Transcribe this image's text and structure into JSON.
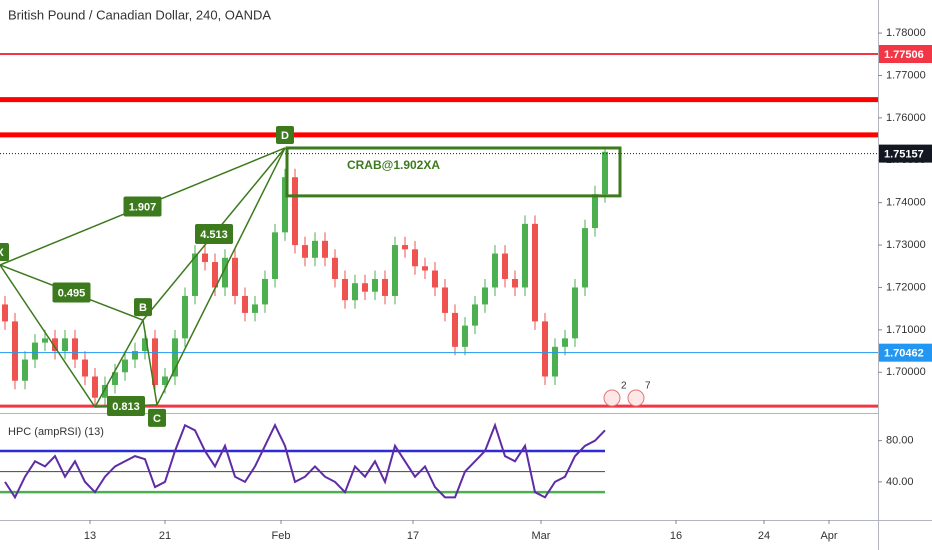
{
  "chart_data": {
    "type": "candlestick",
    "title": "British Pound / Canadian Dollar, 240, OANDA",
    "ylim": [
      1.6911,
      1.7878
    ],
    "yticks": [
      {
        "value": 1.7,
        "label": "1.70000"
      },
      {
        "value": 1.71,
        "label": "1.71000"
      },
      {
        "value": 1.72,
        "label": "1.72000"
      },
      {
        "value": 1.73,
        "label": "1.73000"
      },
      {
        "value": 1.74,
        "label": "1.74000"
      },
      {
        "value": 1.75,
        "label": "1.75000"
      },
      {
        "value": 1.76,
        "label": "1.76000"
      },
      {
        "value": 1.77,
        "label": "1.77000"
      },
      {
        "value": 1.78,
        "label": "1.78000"
      }
    ],
    "xlim": [
      -0.5,
      87.3
    ],
    "xticks": [
      {
        "value": 8.5,
        "label": "13"
      },
      {
        "value": 16,
        "label": "21"
      },
      {
        "value": 27.6,
        "label": "Feb"
      },
      {
        "value": 40.8,
        "label": "17"
      },
      {
        "value": 53.6,
        "label": "Mar"
      },
      {
        "value": 67.1,
        "label": "16"
      },
      {
        "value": 75.9,
        "label": "24"
      },
      {
        "value": 82.4,
        "label": "Apr"
      }
    ],
    "up_color": "#4caf50",
    "down_color": "#ef5350",
    "candles": [
      [
        1.716,
        1.718,
        1.71,
        1.712
      ],
      [
        1.712,
        1.714,
        1.696,
        1.698
      ],
      [
        1.698,
        1.705,
        1.696,
        1.703
      ],
      [
        1.703,
        1.709,
        1.701,
        1.707
      ],
      [
        1.707,
        1.71,
        1.705,
        1.708
      ],
      [
        1.708,
        1.71,
        1.703,
        1.705
      ],
      [
        1.705,
        1.71,
        1.703,
        1.708
      ],
      [
        1.708,
        1.71,
        1.701,
        1.703
      ],
      [
        1.703,
        1.705,
        1.697,
        1.699
      ],
      [
        1.699,
        1.701,
        1.692,
        1.694
      ],
      [
        1.694,
        1.699,
        1.692,
        1.697
      ],
      [
        1.697,
        1.702,
        1.695,
        1.7
      ],
      [
        1.7,
        1.705,
        1.698,
        1.703
      ],
      [
        1.703,
        1.707,
        1.701,
        1.705
      ],
      [
        1.705,
        1.71,
        1.703,
        1.708
      ],
      [
        1.708,
        1.71,
        1.695,
        1.697
      ],
      [
        1.697,
        1.701,
        1.695,
        1.699
      ],
      [
        1.699,
        1.71,
        1.697,
        1.708
      ],
      [
        1.708,
        1.72,
        1.706,
        1.718
      ],
      [
        1.718,
        1.73,
        1.716,
        1.728
      ],
      [
        1.728,
        1.73,
        1.724,
        1.726
      ],
      [
        1.726,
        1.728,
        1.718,
        1.72
      ],
      [
        1.72,
        1.729,
        1.718,
        1.727
      ],
      [
        1.727,
        1.729,
        1.716,
        1.718
      ],
      [
        1.718,
        1.72,
        1.712,
        1.714
      ],
      [
        1.714,
        1.718,
        1.712,
        1.716
      ],
      [
        1.716,
        1.724,
        1.714,
        1.722
      ],
      [
        1.722,
        1.735,
        1.72,
        1.733
      ],
      [
        1.733,
        1.748,
        1.731,
        1.746
      ],
      [
        1.746,
        1.748,
        1.728,
        1.73
      ],
      [
        1.73,
        1.732,
        1.725,
        1.727
      ],
      [
        1.727,
        1.733,
        1.725,
        1.731
      ],
      [
        1.731,
        1.733,
        1.725,
        1.727
      ],
      [
        1.727,
        1.729,
        1.72,
        1.722
      ],
      [
        1.722,
        1.724,
        1.715,
        1.717
      ],
      [
        1.717,
        1.723,
        1.715,
        1.721
      ],
      [
        1.721,
        1.723,
        1.717,
        1.719
      ],
      [
        1.719,
        1.724,
        1.717,
        1.722
      ],
      [
        1.722,
        1.724,
        1.716,
        1.718
      ],
      [
        1.718,
        1.732,
        1.716,
        1.73
      ],
      [
        1.73,
        1.732,
        1.727,
        1.729
      ],
      [
        1.729,
        1.731,
        1.723,
        1.725
      ],
      [
        1.725,
        1.727,
        1.722,
        1.724
      ],
      [
        1.724,
        1.726,
        1.718,
        1.72
      ],
      [
        1.72,
        1.722,
        1.712,
        1.714
      ],
      [
        1.714,
        1.716,
        1.704,
        1.706
      ],
      [
        1.706,
        1.713,
        1.704,
        1.711
      ],
      [
        1.711,
        1.718,
        1.709,
        1.716
      ],
      [
        1.716,
        1.722,
        1.714,
        1.72
      ],
      [
        1.72,
        1.73,
        1.718,
        1.728
      ],
      [
        1.728,
        1.73,
        1.72,
        1.722
      ],
      [
        1.722,
        1.724,
        1.718,
        1.72
      ],
      [
        1.72,
        1.737,
        1.718,
        1.735
      ],
      [
        1.735,
        1.737,
        1.71,
        1.712
      ],
      [
        1.712,
        1.714,
        1.697,
        1.699
      ],
      [
        1.699,
        1.708,
        1.697,
        1.706
      ],
      [
        1.706,
        1.71,
        1.704,
        1.708
      ],
      [
        1.708,
        1.722,
        1.706,
        1.72
      ],
      [
        1.72,
        1.736,
        1.718,
        1.734
      ],
      [
        1.734,
        1.744,
        1.732,
        1.742
      ],
      [
        1.742,
        1.753,
        1.74,
        1.752
      ]
    ],
    "levels": [
      {
        "value": 1.77506,
        "label": "1.77506",
        "color": "#f23645",
        "style": "solid",
        "width": 2
      },
      {
        "value": 1.7643,
        "color": "#ff0000",
        "style": "solid",
        "width": 5
      },
      {
        "value": 1.756,
        "color": "#ff0000",
        "style": "solid",
        "width": 5
      },
      {
        "value": 1.75157,
        "label": "1.75157",
        "color": "#131722",
        "style": "dotted",
        "width": 1
      },
      {
        "value": 1.70462,
        "label": "1.70462",
        "color": "#2196f3",
        "style": "solid",
        "width": 1
      },
      {
        "value": 1.692,
        "color": "#f23645",
        "style": "solid",
        "width": 3
      }
    ],
    "pattern": {
      "color": "#3d7a1e",
      "points": [
        {
          "label": "X",
          "x": -0.5,
          "y": 1.7253
        },
        {
          "label": null,
          "x": 9.0,
          "y": 1.6918
        },
        {
          "label": "B",
          "x": 13.8,
          "y": 1.7123
        },
        {
          "label": "C",
          "x": 15.2,
          "y": 1.6923
        },
        {
          "label": "D",
          "x": 28.0,
          "y": 1.7529
        }
      ],
      "ratios": [
        {
          "from": 0,
          "to": 2,
          "label": "0.495"
        },
        {
          "from": 1,
          "to": 3,
          "label": "0.813"
        },
        {
          "from": 2,
          "to": 4,
          "label": "4.513"
        },
        {
          "from": 0,
          "to": 4,
          "label": "1.907"
        }
      ]
    },
    "box": {
      "label": "CRAB@1.902XA",
      "x": [
        28.2,
        61.5
      ],
      "y": [
        1.7416,
        1.7529
      ]
    },
    "events": [
      "2",
      "7"
    ],
    "indicator": {
      "title": "HPC (ampRSI) (13)",
      "color": "#5e2ca5",
      "ylim": [
        3,
        102
      ],
      "yticks": [
        {
          "value": 80,
          "label": "80.00"
        },
        {
          "value": 40,
          "label": "40.00"
        }
      ],
      "levels": [
        {
          "value": 70,
          "color": "#2b2bd8"
        },
        {
          "value": 50,
          "color": "#444444"
        },
        {
          "value": 30,
          "color": "#4caf50"
        }
      ],
      "values": [
        40,
        25,
        45,
        60,
        55,
        65,
        45,
        60,
        40,
        30,
        45,
        55,
        60,
        65,
        62,
        35,
        40,
        70,
        95,
        90,
        70,
        55,
        75,
        45,
        40,
        55,
        75,
        95,
        75,
        40,
        45,
        55,
        45,
        40,
        30,
        55,
        45,
        60,
        40,
        75,
        60,
        45,
        55,
        35,
        25,
        25,
        50,
        60,
        70,
        95,
        65,
        60,
        75,
        30,
        25,
        40,
        45,
        65,
        75,
        80,
        90
      ]
    }
  }
}
